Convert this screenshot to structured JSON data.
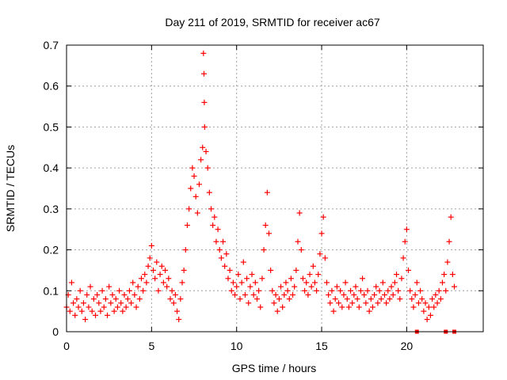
{
  "chart_data": {
    "type": "scatter",
    "title": "Day 211 of 2019, SRMTID for receiver ac67",
    "xlabel": "GPS time / hours",
    "ylabel": "SRMTID / TECUs",
    "xlim": [
      0,
      24.5
    ],
    "ylim": [
      0,
      0.7
    ],
    "xticks": [
      0,
      5,
      10,
      15,
      20
    ],
    "xtick_labels": [
      "0",
      "5",
      "10",
      "15",
      "20"
    ],
    "yticks": [
      0,
      0.1,
      0.2,
      0.3,
      0.4,
      0.5,
      0.6,
      0.7
    ],
    "ytick_labels": [
      "0",
      "0.1",
      "0.2",
      "0.3",
      "0.4",
      "0.5",
      "0.6",
      "0.7"
    ],
    "grid": true,
    "marker": "+",
    "color": "#ff0000",
    "series": [
      {
        "name": "SRMTID",
        "points": [
          [
            0.0,
            0.06
          ],
          [
            0.1,
            0.09
          ],
          [
            0.2,
            0.05
          ],
          [
            0.3,
            0.12
          ],
          [
            0.4,
            0.07
          ],
          [
            0.5,
            0.04
          ],
          [
            0.6,
            0.08
          ],
          [
            0.7,
            0.06
          ],
          [
            0.8,
            0.1
          ],
          [
            0.9,
            0.05
          ],
          [
            1.0,
            0.07
          ],
          [
            1.1,
            0.03
          ],
          [
            1.2,
            0.09
          ],
          [
            1.3,
            0.06
          ],
          [
            1.4,
            0.11
          ],
          [
            1.5,
            0.05
          ],
          [
            1.6,
            0.08
          ],
          [
            1.7,
            0.04
          ],
          [
            1.8,
            0.09
          ],
          [
            1.9,
            0.07
          ],
          [
            2.0,
            0.05
          ],
          [
            2.1,
            0.1
          ],
          [
            2.2,
            0.06
          ],
          [
            2.3,
            0.08
          ],
          [
            2.4,
            0.04
          ],
          [
            2.5,
            0.11
          ],
          [
            2.6,
            0.07
          ],
          [
            2.7,
            0.09
          ],
          [
            2.8,
            0.05
          ],
          [
            2.9,
            0.08
          ],
          [
            3.0,
            0.06
          ],
          [
            3.1,
            0.1
          ],
          [
            3.2,
            0.07
          ],
          [
            3.3,
            0.05
          ],
          [
            3.4,
            0.09
          ],
          [
            3.5,
            0.06
          ],
          [
            3.6,
            0.08
          ],
          [
            3.7,
            0.1
          ],
          [
            3.8,
            0.07
          ],
          [
            3.9,
            0.12
          ],
          [
            4.0,
            0.09
          ],
          [
            4.1,
            0.06
          ],
          [
            4.2,
            0.11
          ],
          [
            4.3,
            0.08
          ],
          [
            4.4,
            0.13
          ],
          [
            4.5,
            0.1
          ],
          [
            4.6,
            0.14
          ],
          [
            4.7,
            0.12
          ],
          [
            4.8,
            0.16
          ],
          [
            4.9,
            0.18
          ],
          [
            5.0,
            0.21
          ],
          [
            5.1,
            0.15
          ],
          [
            5.2,
            0.13
          ],
          [
            5.3,
            0.17
          ],
          [
            5.4,
            0.1
          ],
          [
            5.5,
            0.14
          ],
          [
            5.6,
            0.16
          ],
          [
            5.7,
            0.12
          ],
          [
            5.8,
            0.15
          ],
          [
            5.9,
            0.11
          ],
          [
            6.0,
            0.13
          ],
          [
            6.1,
            0.08
          ],
          [
            6.2,
            0.1
          ],
          [
            6.3,
            0.07
          ],
          [
            6.4,
            0.09
          ],
          [
            6.5,
            0.05
          ],
          [
            6.6,
            0.03
          ],
          [
            6.7,
            0.08
          ],
          [
            6.8,
            0.12
          ],
          [
            6.9,
            0.15
          ],
          [
            7.0,
            0.2
          ],
          [
            7.1,
            0.26
          ],
          [
            7.2,
            0.3
          ],
          [
            7.3,
            0.35
          ],
          [
            7.4,
            0.4
          ],
          [
            7.5,
            0.38
          ],
          [
            7.6,
            0.33
          ],
          [
            7.7,
            0.29
          ],
          [
            7.8,
            0.36
          ],
          [
            7.9,
            0.42
          ],
          [
            8.0,
            0.45
          ],
          [
            8.05,
            0.68
          ],
          [
            8.08,
            0.63
          ],
          [
            8.1,
            0.56
          ],
          [
            8.12,
            0.5
          ],
          [
            8.2,
            0.44
          ],
          [
            8.3,
            0.4
          ],
          [
            8.4,
            0.34
          ],
          [
            8.5,
            0.3
          ],
          [
            8.6,
            0.26
          ],
          [
            8.7,
            0.28
          ],
          [
            8.8,
            0.22
          ],
          [
            8.9,
            0.25
          ],
          [
            9.0,
            0.2
          ],
          [
            9.1,
            0.18
          ],
          [
            9.2,
            0.22
          ],
          [
            9.3,
            0.16
          ],
          [
            9.4,
            0.19
          ],
          [
            9.5,
            0.13
          ],
          [
            9.6,
            0.15
          ],
          [
            9.7,
            0.1
          ],
          [
            9.8,
            0.12
          ],
          [
            9.9,
            0.09
          ],
          [
            10.0,
            0.11
          ],
          [
            10.1,
            0.14
          ],
          [
            10.2,
            0.08
          ],
          [
            10.3,
            0.12
          ],
          [
            10.4,
            0.17
          ],
          [
            10.5,
            0.09
          ],
          [
            10.6,
            0.13
          ],
          [
            10.7,
            0.07
          ],
          [
            10.8,
            0.11
          ],
          [
            10.9,
            0.14
          ],
          [
            11.0,
            0.09
          ],
          [
            11.1,
            0.12
          ],
          [
            11.2,
            0.08
          ],
          [
            11.3,
            0.1
          ],
          [
            11.4,
            0.06
          ],
          [
            11.5,
            0.13
          ],
          [
            11.6,
            0.2
          ],
          [
            11.7,
            0.26
          ],
          [
            11.8,
            0.34
          ],
          [
            11.9,
            0.24
          ],
          [
            12.0,
            0.15
          ],
          [
            12.1,
            0.1
          ],
          [
            12.2,
            0.07
          ],
          [
            12.3,
            0.09
          ],
          [
            12.4,
            0.05
          ],
          [
            12.5,
            0.08
          ],
          [
            12.6,
            0.11
          ],
          [
            12.7,
            0.06
          ],
          [
            12.8,
            0.09
          ],
          [
            12.9,
            0.12
          ],
          [
            13.0,
            0.1
          ],
          [
            13.1,
            0.08
          ],
          [
            13.2,
            0.13
          ],
          [
            13.3,
            0.09
          ],
          [
            13.4,
            0.11
          ],
          [
            13.5,
            0.15
          ],
          [
            13.6,
            0.22
          ],
          [
            13.7,
            0.29
          ],
          [
            13.8,
            0.2
          ],
          [
            13.9,
            0.13
          ],
          [
            14.0,
            0.1
          ],
          [
            14.1,
            0.12
          ],
          [
            14.2,
            0.09
          ],
          [
            14.3,
            0.14
          ],
          [
            14.4,
            0.11
          ],
          [
            14.5,
            0.16
          ],
          [
            14.6,
            0.12
          ],
          [
            14.7,
            0.1
          ],
          [
            14.8,
            0.14
          ],
          [
            14.9,
            0.19
          ],
          [
            15.0,
            0.24
          ],
          [
            15.1,
            0.28
          ],
          [
            15.2,
            0.18
          ],
          [
            15.3,
            0.12
          ],
          [
            15.4,
            0.09
          ],
          [
            15.5,
            0.07
          ],
          [
            15.6,
            0.1
          ],
          [
            15.7,
            0.05
          ],
          [
            15.8,
            0.08
          ],
          [
            15.9,
            0.11
          ],
          [
            16.0,
            0.07
          ],
          [
            16.1,
            0.1
          ],
          [
            16.2,
            0.06
          ],
          [
            16.3,
            0.09
          ],
          [
            16.4,
            0.12
          ],
          [
            16.5,
            0.08
          ],
          [
            16.6,
            0.06
          ],
          [
            16.7,
            0.1
          ],
          [
            16.8,
            0.07
          ],
          [
            16.9,
            0.09
          ],
          [
            17.0,
            0.11
          ],
          [
            17.1,
            0.08
          ],
          [
            17.2,
            0.06
          ],
          [
            17.3,
            0.1
          ],
          [
            17.4,
            0.13
          ],
          [
            17.5,
            0.09
          ],
          [
            17.6,
            0.07
          ],
          [
            17.7,
            0.1
          ],
          [
            17.8,
            0.05
          ],
          [
            17.9,
            0.08
          ],
          [
            18.0,
            0.06
          ],
          [
            18.1,
            0.09
          ],
          [
            18.2,
            0.11
          ],
          [
            18.3,
            0.07
          ],
          [
            18.4,
            0.1
          ],
          [
            18.5,
            0.08
          ],
          [
            18.6,
            0.12
          ],
          [
            18.7,
            0.09
          ],
          [
            18.8,
            0.07
          ],
          [
            18.9,
            0.1
          ],
          [
            19.0,
            0.08
          ],
          [
            19.1,
            0.11
          ],
          [
            19.2,
            0.09
          ],
          [
            19.3,
            0.12
          ],
          [
            19.4,
            0.14
          ],
          [
            19.5,
            0.1
          ],
          [
            19.6,
            0.08
          ],
          [
            19.7,
            0.13
          ],
          [
            19.8,
            0.18
          ],
          [
            19.9,
            0.22
          ],
          [
            20.0,
            0.25
          ],
          [
            20.1,
            0.15
          ],
          [
            20.2,
            0.1
          ],
          [
            20.3,
            0.08
          ],
          [
            20.4,
            0.06
          ],
          [
            20.5,
            0.09
          ],
          [
            20.6,
            0.12
          ],
          [
            20.7,
            0.07
          ],
          [
            20.8,
            0.1
          ],
          [
            20.9,
            0.08
          ],
          [
            21.0,
            0.05
          ],
          [
            21.1,
            0.07
          ],
          [
            21.2,
            0.03
          ],
          [
            21.3,
            0.06
          ],
          [
            21.4,
            0.04
          ],
          [
            21.5,
            0.08
          ],
          [
            21.6,
            0.06
          ],
          [
            21.7,
            0.09
          ],
          [
            21.8,
            0.07
          ],
          [
            21.9,
            0.1
          ],
          [
            22.0,
            0.08
          ],
          [
            22.1,
            0.12
          ],
          [
            22.2,
            0.14
          ],
          [
            22.3,
            0.1
          ],
          [
            22.4,
            0.17
          ],
          [
            22.5,
            0.22
          ],
          [
            22.6,
            0.28
          ],
          [
            22.7,
            0.14
          ],
          [
            22.8,
            0.11
          ]
        ]
      }
    ],
    "zero_points_x": [
      20.6,
      22.3,
      22.8
    ]
  }
}
